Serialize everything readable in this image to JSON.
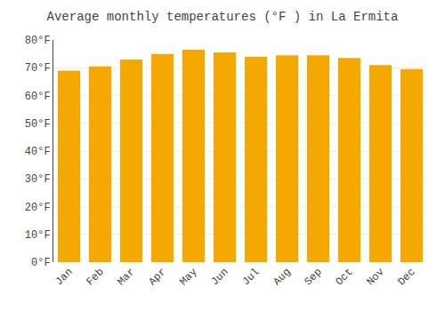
{
  "chart_data": {
    "type": "bar",
    "title": "Average monthly temperatures (°F ) in La Ermita",
    "categories": [
      "Jan",
      "Feb",
      "Mar",
      "Apr",
      "May",
      "Jun",
      "Jul",
      "Aug",
      "Sep",
      "Oct",
      "Nov",
      "Dec"
    ],
    "values": [
      69,
      70.5,
      73,
      75,
      76.5,
      75.5,
      74,
      74.5,
      74.5,
      73.5,
      71,
      69.5
    ],
    "color": "#F5A800",
    "ylim": [
      0,
      80
    ],
    "yticks": [
      {
        "value": 0,
        "label": "0°F"
      },
      {
        "value": 10,
        "label": "10°F"
      },
      {
        "value": 20,
        "label": "20°F"
      },
      {
        "value": 30,
        "label": "30°F"
      },
      {
        "value": 40,
        "label": "40°F"
      },
      {
        "value": 50,
        "label": "50°F"
      },
      {
        "value": 60,
        "label": "60°F"
      },
      {
        "value": 70,
        "label": "70°F"
      },
      {
        "value": 80,
        "label": "80°F"
      }
    ],
    "grid": true
  }
}
